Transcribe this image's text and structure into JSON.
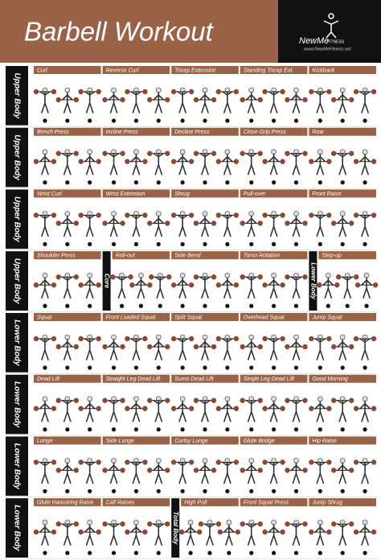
{
  "header": {
    "title": "Barbell Workout",
    "logo": "NewMe",
    "logo_tag": "FITNESS",
    "website": "www.NewMeFitness.net"
  },
  "rows": [
    {
      "label": "Upper Body",
      "cells": [
        {
          "name": "Curl"
        },
        {
          "name": "Reverse Curl"
        },
        {
          "name": "Tricep Extension"
        },
        {
          "name": "Standing Tricep Ext."
        },
        {
          "name": "Kickback"
        }
      ]
    },
    {
      "label": "Upper Body",
      "cells": [
        {
          "name": "Bench Press"
        },
        {
          "name": "Incline Press"
        },
        {
          "name": "Decline Press"
        },
        {
          "name": "Close Grip Press"
        },
        {
          "name": "Row"
        }
      ]
    },
    {
      "label": "Upper Body",
      "cells": [
        {
          "name": "Wrist Curl"
        },
        {
          "name": "Wrist Extension"
        },
        {
          "name": "Shrug"
        },
        {
          "name": "Pull-over"
        },
        {
          "name": "Front Raise"
        }
      ]
    },
    {
      "label": "Upper Body",
      "cells": [
        {
          "name": "Shoulder Press"
        },
        {
          "name": "Roll-out",
          "section": "Core"
        },
        {
          "name": "Side Bend"
        },
        {
          "name": "Torso Rotation"
        },
        {
          "name": "Step-up",
          "section": "Lower Body"
        }
      ]
    },
    {
      "label": "Lower Body",
      "cells": [
        {
          "name": "Squat"
        },
        {
          "name": "Front Loaded Squat"
        },
        {
          "name": "Split Squat"
        },
        {
          "name": "Overhead Squat"
        },
        {
          "name": "Jump Squat"
        }
      ]
    },
    {
      "label": "Lower Body",
      "cells": [
        {
          "name": "Dead Lift"
        },
        {
          "name": "Straight Leg Dead Lift"
        },
        {
          "name": "Sumo Dead Lift"
        },
        {
          "name": "Single Leg Dead Lift"
        },
        {
          "name": "Good Morning"
        }
      ]
    },
    {
      "label": "Lower Body",
      "cells": [
        {
          "name": "Lunge"
        },
        {
          "name": "Side Lunge"
        },
        {
          "name": "Curtsy Lunge"
        },
        {
          "name": "Glute Bridge"
        },
        {
          "name": "Hip Raise"
        }
      ]
    },
    {
      "label": "Lower Body",
      "cells": [
        {
          "name": "Glute Hamstring Raise"
        },
        {
          "name": "Calf Raises"
        },
        {
          "name": "High Pull",
          "section": "Total Body"
        },
        {
          "name": "Front Squat Press"
        },
        {
          "name": "Jump Shrug"
        }
      ]
    }
  ]
}
